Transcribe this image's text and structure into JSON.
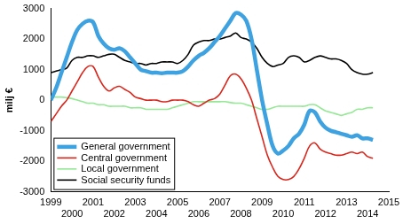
{
  "chart_data": {
    "type": "line",
    "y_label": "milj €",
    "x": [
      1999,
      1999.25,
      1999.5,
      1999.75,
      2000,
      2000.25,
      2000.5,
      2000.75,
      2001,
      2001.25,
      2001.5,
      2001.75,
      2002,
      2002.25,
      2002.5,
      2002.75,
      2003,
      2003.25,
      2003.5,
      2003.75,
      2004,
      2004.25,
      2004.5,
      2004.75,
      2005,
      2005.25,
      2005.5,
      2005.75,
      2006,
      2006.25,
      2006.5,
      2006.75,
      2007,
      2007.25,
      2007.5,
      2007.75,
      2008,
      2008.25,
      2008.5,
      2008.75,
      2009,
      2009.25,
      2009.5,
      2009.75,
      2010,
      2010.25,
      2010.5,
      2010.75,
      2011,
      2011.25,
      2011.5,
      2011.75,
      2012,
      2012.25,
      2012.5,
      2012.75,
      2013,
      2013.25,
      2013.5,
      2013.75,
      2014,
      2014.25
    ],
    "xlim": [
      1999,
      2015
    ],
    "xticks": [
      1999,
      2000,
      2001,
      2002,
      2003,
      2004,
      2005,
      2006,
      2007,
      2008,
      2009,
      2010,
      2011,
      2012,
      2013,
      2014,
      2015
    ],
    "ylim": [
      -3000,
      3000
    ],
    "yticks": [
      -3000,
      -2000,
      -1000,
      0,
      1000,
      2000,
      3000
    ],
    "grid": false,
    "legend": "lower left",
    "series": [
      {
        "name": "General government",
        "color": "#3fa2e0",
        "values": [
          0,
          400,
          900,
          1400,
          1900,
          2300,
          2500,
          2600,
          2550,
          2100,
          1850,
          1700,
          1650,
          1700,
          1600,
          1400,
          1200,
          1000,
          950,
          900,
          900,
          880,
          900,
          900,
          900,
          950,
          1100,
          1300,
          1450,
          1550,
          1700,
          1900,
          2100,
          2350,
          2600,
          2850,
          2800,
          2600,
          2000,
          1000,
          0,
          -800,
          -1500,
          -1750,
          -1650,
          -1500,
          -1250,
          -1100,
          -800,
          -350,
          -400,
          -700,
          -900,
          -1000,
          -1050,
          -1100,
          -1150,
          -1200,
          -1150,
          -1250,
          -1250,
          -1300
        ]
      },
      {
        "name": "Central government",
        "color": "#d9261c",
        "values": [
          -700,
          -450,
          -200,
          0,
          300,
          600,
          900,
          1100,
          1100,
          750,
          450,
          300,
          400,
          450,
          350,
          250,
          100,
          50,
          0,
          0,
          0,
          -50,
          -50,
          0,
          0,
          0,
          -50,
          -150,
          -200,
          -100,
          0,
          50,
          200,
          500,
          800,
          850,
          700,
          400,
          0,
          -600,
          -1200,
          -1800,
          -2200,
          -2500,
          -2600,
          -2600,
          -2500,
          -2250,
          -1900,
          -1500,
          -1400,
          -1600,
          -1700,
          -1750,
          -1800,
          -1800,
          -1750,
          -1700,
          -1750,
          -1700,
          -1850,
          -1900
        ]
      },
      {
        "name": "Local government",
        "color": "#95e895",
        "values": [
          100,
          100,
          100,
          80,
          50,
          0,
          -50,
          -100,
          -100,
          -150,
          -150,
          -200,
          -200,
          -200,
          -200,
          -250,
          -250,
          -250,
          -300,
          -300,
          -300,
          -300,
          -300,
          -250,
          -200,
          -150,
          -100,
          -50,
          -50,
          -50,
          -50,
          -50,
          -50,
          -50,
          -80,
          -100,
          -100,
          -150,
          -200,
          -250,
          -300,
          -300,
          -250,
          -200,
          -200,
          -200,
          -200,
          -200,
          -200,
          -150,
          -150,
          -250,
          -350,
          -400,
          -450,
          -500,
          -450,
          -400,
          -300,
          -300,
          -250,
          -250
        ]
      },
      {
        "name": "Social security funds",
        "color": "#000000",
        "values": [
          900,
          950,
          1000,
          1050,
          1300,
          1400,
          1400,
          1450,
          1450,
          1400,
          1450,
          1500,
          1500,
          1400,
          1300,
          1250,
          1200,
          1200,
          1150,
          1200,
          1200,
          1250,
          1250,
          1250,
          1200,
          1300,
          1500,
          1800,
          1900,
          1950,
          1950,
          2000,
          2000,
          2050,
          2100,
          2200,
          2050,
          2000,
          1900,
          1700,
          1400,
          1200,
          1100,
          1150,
          1200,
          1400,
          1450,
          1400,
          1250,
          1300,
          1400,
          1450,
          1400,
          1350,
          1350,
          1300,
          1200,
          1000,
          900,
          850,
          850,
          900
        ]
      }
    ]
  }
}
